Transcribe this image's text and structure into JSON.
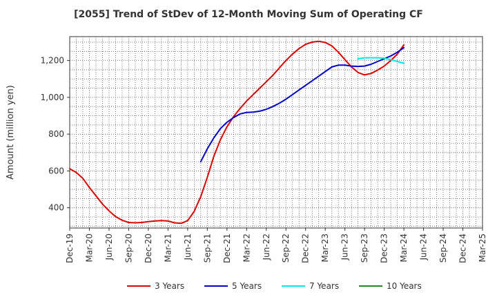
{
  "chart_data": {
    "type": "line",
    "title": "[2055]  Trend of StDev of 12-Month Moving Sum of Operating CF",
    "xlabel": "",
    "ylabel": "Amount (million yen)",
    "ylim": [
      290,
      1330
    ],
    "y_ticks": [
      400,
      600,
      800,
      1000,
      1200
    ],
    "y_tick_labels": [
      "400",
      "600",
      "800",
      "1,000",
      "1,200"
    ],
    "x_tick_labels": [
      "Dec-19",
      "Mar-20",
      "Jun-20",
      "Sep-20",
      "Dec-20",
      "Mar-21",
      "Jun-21",
      "Sep-21",
      "Dec-21",
      "Mar-22",
      "Jun-22",
      "Sep-22",
      "Dec-22",
      "Mar-23",
      "Jun-23",
      "Sep-23",
      "Dec-23",
      "Mar-24",
      "Jun-24",
      "Sep-24",
      "Dec-24",
      "Mar-25"
    ],
    "x_range": [
      "Dec-19",
      "Mar-25"
    ],
    "grid": true,
    "legend_position": "bottom",
    "series": [
      {
        "name": "3 Years",
        "color": "#dd0000",
        "x": [
          "Dec-19",
          "Jan-20",
          "Feb-20",
          "Mar-20",
          "Apr-20",
          "May-20",
          "Jun-20",
          "Jul-20",
          "Aug-20",
          "Sep-20",
          "Oct-20",
          "Nov-20",
          "Dec-20",
          "Jan-21",
          "Feb-21",
          "Mar-21",
          "Apr-21",
          "May-21",
          "Jun-21",
          "Jul-21",
          "Aug-21",
          "Sep-21",
          "Oct-21",
          "Nov-21",
          "Dec-21",
          "Jan-22",
          "Feb-22",
          "Mar-22",
          "Apr-22",
          "May-22",
          "Jun-22",
          "Jul-22",
          "Aug-22",
          "Sep-22",
          "Oct-22",
          "Nov-22",
          "Dec-22",
          "Jan-23",
          "Feb-23",
          "Mar-23",
          "Apr-23",
          "May-23",
          "Jun-23",
          "Jul-23",
          "Aug-23",
          "Sep-23",
          "Oct-23",
          "Nov-23",
          "Dec-23",
          "Jan-24",
          "Feb-24",
          "Mar-24"
        ],
        "values": [
          612,
          592,
          560,
          510,
          465,
          420,
          383,
          352,
          332,
          320,
          318,
          320,
          325,
          328,
          330,
          328,
          318,
          315,
          330,
          380,
          460,
          565,
          680,
          770,
          840,
          895,
          940,
          980,
          1015,
          1050,
          1085,
          1120,
          1160,
          1200,
          1235,
          1265,
          1288,
          1300,
          1305,
          1298,
          1280,
          1245,
          1205,
          1165,
          1135,
          1122,
          1130,
          1148,
          1170,
          1200,
          1235,
          1285
        ]
      },
      {
        "name": "5 Years",
        "color": "#0000cc",
        "x": [
          "Aug-21",
          "Sep-21",
          "Oct-21",
          "Nov-21",
          "Dec-21",
          "Jan-22",
          "Feb-22",
          "Mar-22",
          "Apr-22",
          "May-22",
          "Jun-22",
          "Jul-22",
          "Aug-22",
          "Sep-22",
          "Oct-22",
          "Nov-22",
          "Dec-22",
          "Jan-23",
          "Feb-23",
          "Mar-23",
          "Apr-23",
          "May-23",
          "Jun-23",
          "Jul-23",
          "Aug-23",
          "Sep-23",
          "Oct-23",
          "Nov-23",
          "Dec-23",
          "Jan-24",
          "Feb-24",
          "Mar-24"
        ],
        "values": [
          650,
          720,
          780,
          830,
          865,
          890,
          910,
          918,
          920,
          925,
          935,
          950,
          968,
          990,
          1015,
          1040,
          1065,
          1090,
          1115,
          1140,
          1165,
          1175,
          1175,
          1170,
          1168,
          1170,
          1180,
          1195,
          1210,
          1225,
          1245,
          1270
        ]
      },
      {
        "name": "7 Years",
        "color": "#00e5e5",
        "x": [
          "Aug-23",
          "Sep-23",
          "Oct-23",
          "Nov-23",
          "Dec-23",
          "Jan-24",
          "Feb-24",
          "Mar-24"
        ],
        "values": [
          1210,
          1215,
          1215,
          1215,
          1212,
          1205,
          1195,
          1185
        ]
      },
      {
        "name": "10 Years",
        "color": "#228822",
        "x": [],
        "values": []
      }
    ]
  }
}
